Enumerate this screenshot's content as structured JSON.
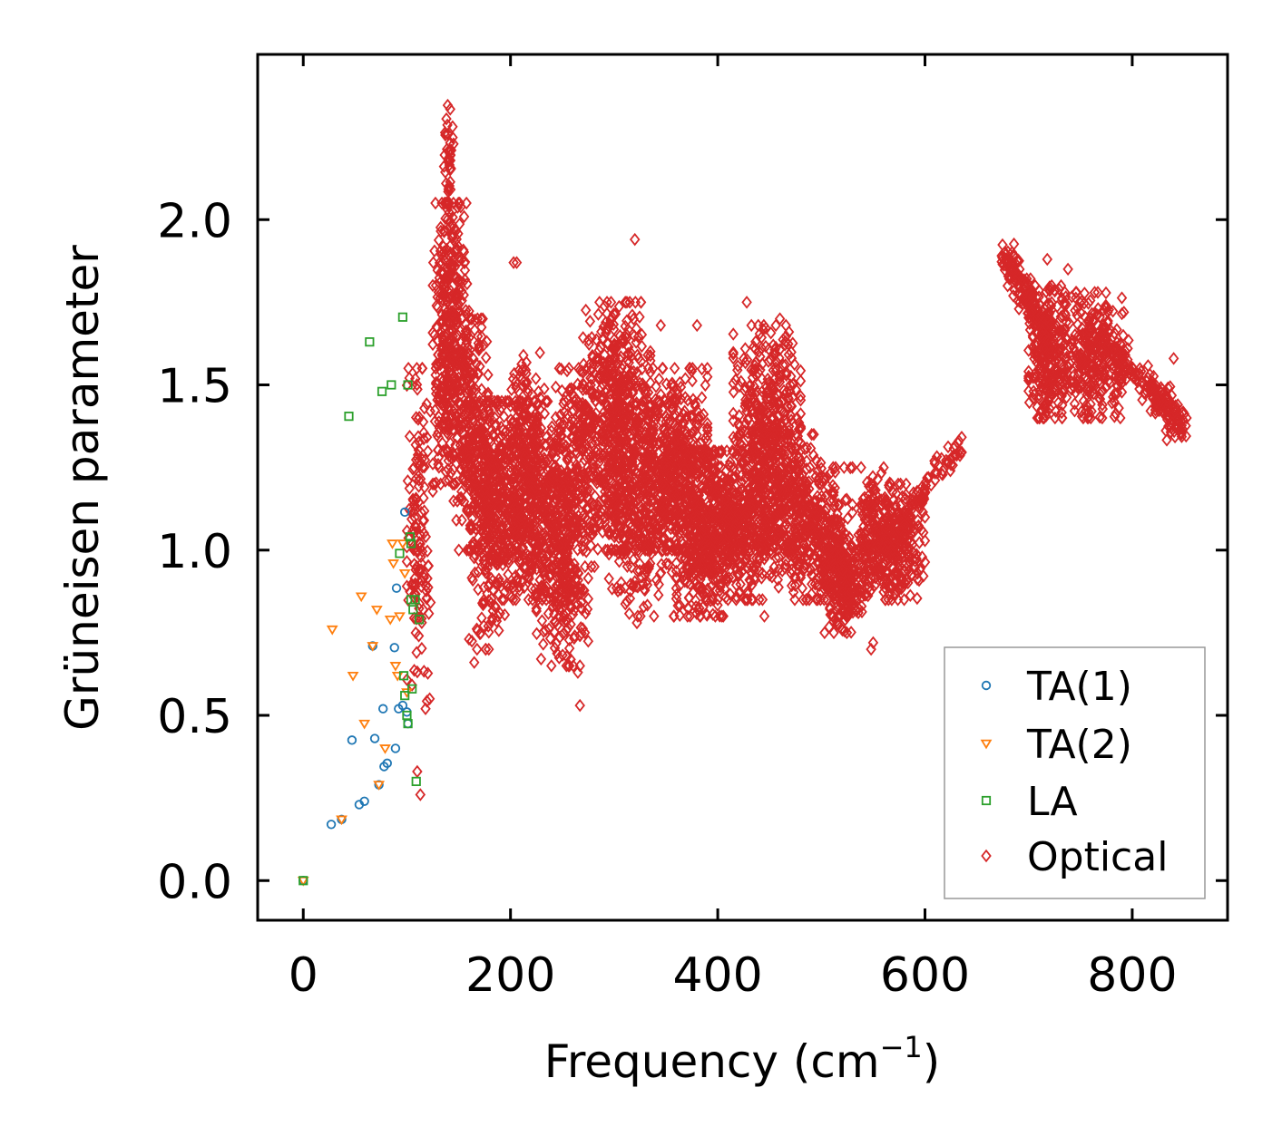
{
  "chart_data": {
    "type": "scatter",
    "title": "",
    "xlabel": "Frequency (cm",
    "xlabel_sup": "−1",
    "xlabel_close": ")",
    "ylabel": "Grüneisen parameter",
    "xlim": [
      -44,
      892
    ],
    "ylim": [
      -0.12,
      2.5
    ],
    "xticks": [
      0,
      200,
      400,
      600,
      800
    ],
    "xtick_labels": [
      "0",
      "200",
      "400",
      "600",
      "800"
    ],
    "yticks": [
      0.0,
      0.5,
      1.0,
      1.5,
      2.0
    ],
    "ytick_labels": [
      "0.0",
      "0.5",
      "1.0",
      "1.5",
      "2.0"
    ],
    "legend_position": "lower-right",
    "series": [
      {
        "name": "TA(1)",
        "marker": "circle",
        "color": "#1f77b4",
        "points": [
          [
            0,
            0.0
          ],
          [
            27,
            0.17
          ],
          [
            37,
            0.185
          ],
          [
            47,
            0.425
          ],
          [
            54,
            0.23
          ],
          [
            59,
            0.24
          ],
          [
            67,
            0.71
          ],
          [
            69,
            0.43
          ],
          [
            73,
            0.29
          ],
          [
            77,
            0.52
          ],
          [
            78,
            0.345
          ],
          [
            81,
            0.355
          ],
          [
            88,
            0.705
          ],
          [
            89,
            0.4
          ],
          [
            90,
            0.885
          ],
          [
            92,
            0.52
          ],
          [
            96,
            0.53
          ],
          [
            98,
            1.115
          ],
          [
            100,
            0.51
          ],
          [
            101,
            0.475
          ]
        ]
      },
      {
        "name": "TA(2)",
        "marker": "triangle-down",
        "color": "#ff7f0e",
        "points": [
          [
            0,
            0.0
          ],
          [
            28,
            0.76
          ],
          [
            37,
            0.185
          ],
          [
            48,
            0.62
          ],
          [
            56,
            0.86
          ],
          [
            59,
            0.475
          ],
          [
            67,
            0.71
          ],
          [
            71,
            0.82
          ],
          [
            73,
            0.29
          ],
          [
            79,
            0.4
          ],
          [
            84,
            0.79
          ],
          [
            86,
            1.02
          ],
          [
            87,
            0.96
          ],
          [
            89,
            0.65
          ],
          [
            91,
            0.62
          ],
          [
            93,
            0.8
          ],
          [
            96,
            1.02
          ],
          [
            98,
            0.93
          ],
          [
            100,
            0.57
          ]
        ]
      },
      {
        "name": "LA",
        "marker": "square",
        "color": "#2ca02c",
        "points": [
          [
            0,
            0.0
          ],
          [
            44,
            1.405
          ],
          [
            64,
            1.63
          ],
          [
            76,
            1.48
          ],
          [
            85,
            1.5
          ],
          [
            93,
            0.99
          ],
          [
            96,
            1.705
          ],
          [
            97,
            0.62
          ],
          [
            98,
            0.56
          ],
          [
            100,
            0.5
          ],
          [
            101,
            1.5
          ],
          [
            101,
            0.475
          ],
          [
            103,
            1.04
          ],
          [
            104,
            0.85
          ],
          [
            104,
            1.02
          ],
          [
            105,
            0.58
          ],
          [
            106,
            0.82
          ],
          [
            108,
            0.85
          ],
          [
            109,
            0.3
          ],
          [
            112,
            0.79
          ]
        ]
      },
      {
        "name": "Optical",
        "marker": "diamond",
        "color": "#d62728",
        "clusters": [
          {
            "x": [
              100,
              125
            ],
            "y": [
              0.5,
              1.55
            ],
            "n": 140
          },
          {
            "x": [
              125,
              160
            ],
            "y": [
              1.2,
              2.05
            ],
            "n": 420
          },
          {
            "x": [
              135,
              145
            ],
            "y": [
              1.95,
              2.38
            ],
            "n": 40
          },
          {
            "x": [
              145,
              180
            ],
            "y": [
              1.0,
              1.7
            ],
            "n": 260
          },
          {
            "x": [
              160,
              195
            ],
            "y": [
              0.7,
              1.45
            ],
            "n": 220
          },
          {
            "x": [
              175,
              255
            ],
            "y": [
              0.85,
              1.45
            ],
            "n": 700
          },
          {
            "x": [
              200,
              235
            ],
            "y": [
              1.2,
              1.6
            ],
            "n": 90
          },
          {
            "x": [
              225,
              275
            ],
            "y": [
              0.65,
              1.2
            ],
            "n": 240
          },
          {
            "x": [
              240,
              290
            ],
            "y": [
              0.95,
              1.55
            ],
            "n": 260
          },
          {
            "x": [
              270,
              335
            ],
            "y": [
              1.0,
              1.75
            ],
            "n": 600
          },
          {
            "x": [
              295,
              360
            ],
            "y": [
              0.8,
              1.45
            ],
            "n": 320
          },
          {
            "x": [
              330,
              390
            ],
            "y": [
              1.0,
              1.55
            ],
            "n": 420
          },
          {
            "x": [
              360,
              410
            ],
            "y": [
              0.8,
              1.3
            ],
            "n": 420
          },
          {
            "x": [
              395,
              445
            ],
            "y": [
              0.85,
              1.3
            ],
            "n": 340
          },
          {
            "x": [
              415,
              480
            ],
            "y": [
              1.0,
              1.68
            ],
            "n": 520
          },
          {
            "x": [
              440,
              500
            ],
            "y": [
              0.85,
              1.35
            ],
            "n": 300
          },
          {
            "x": [
              480,
              530
            ],
            "y": [
              0.85,
              1.25
            ],
            "n": 220
          },
          {
            "x": [
              500,
              545
            ],
            "y": [
              0.75,
              1.05
            ],
            "n": 240
          },
          {
            "x": [
              535,
              575
            ],
            "y": [
              0.85,
              1.25
            ],
            "n": 220
          },
          {
            "x": [
              560,
              600
            ],
            "y": [
              0.85,
              1.2
            ],
            "n": 160
          },
          {
            "x": [
              700,
              740
            ],
            "y": [
              1.4,
              1.8
            ],
            "n": 260
          },
          {
            "x": [
              735,
              790
            ],
            "y": [
              1.4,
              1.78
            ],
            "n": 300
          }
        ],
        "curves": [
          {
            "points": [
              [
                555,
                0.98
              ],
              [
                575,
                1.05
              ],
              [
                590,
                1.12
              ],
              [
                605,
                1.21
              ],
              [
                620,
                1.27
              ],
              [
                635,
                1.31
              ]
            ],
            "spread": 0.05,
            "n": 110
          },
          {
            "points": [
              [
                675,
                1.9
              ],
              [
                690,
                1.82
              ],
              [
                705,
                1.72
              ],
              [
                720,
                1.64
              ]
            ],
            "spread": 0.06,
            "n": 160
          },
          {
            "points": [
              [
                780,
                1.62
              ],
              [
                800,
                1.55
              ],
              [
                820,
                1.48
              ],
              [
                835,
                1.42
              ],
              [
                850,
                1.38
              ]
            ],
            "spread": 0.06,
            "n": 180
          }
        ],
        "outliers": [
          [
            113,
            0.26
          ],
          [
            110,
            0.33
          ],
          [
            118,
            0.52
          ],
          [
            122,
            0.55
          ],
          [
            165,
            0.66
          ],
          [
            188,
            0.8
          ],
          [
            203,
            1.87
          ],
          [
            206,
            1.87
          ],
          [
            265,
            0.63
          ],
          [
            267,
            0.53
          ],
          [
            320,
            1.94
          ],
          [
            322,
            0.78
          ],
          [
            345,
            1.68
          ],
          [
            380,
            1.68
          ],
          [
            428,
            1.75
          ],
          [
            445,
            0.8
          ],
          [
            460,
            1.7
          ],
          [
            548,
            0.7
          ],
          [
            550,
            0.72
          ],
          [
            718,
            1.88
          ],
          [
            738,
            1.85
          ],
          [
            760,
            1.4
          ],
          [
            792,
            1.72
          ],
          [
            840,
            1.58
          ]
        ]
      }
    ]
  }
}
